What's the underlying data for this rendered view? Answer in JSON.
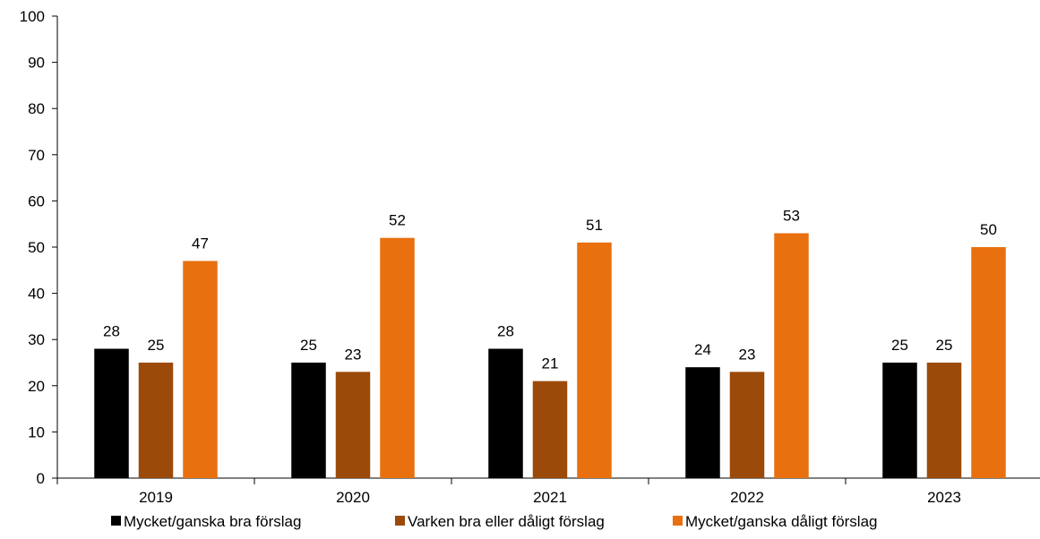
{
  "chart_data": {
    "type": "bar",
    "categories": [
      "2019",
      "2020",
      "2021",
      "2022",
      "2023"
    ],
    "series": [
      {
        "name": "Mycket/ganska bra förslag",
        "color": "#000000",
        "values": [
          28,
          25,
          28,
          24,
          25
        ]
      },
      {
        "name": "Varken bra eller dåligt förslag",
        "color": "#9C4A09",
        "values": [
          25,
          23,
          21,
          23,
          25
        ]
      },
      {
        "name": "Mycket/ganska dåligt förslag",
        "color": "#E8700E",
        "values": [
          47,
          52,
          51,
          53,
          50
        ]
      }
    ],
    "ylim": [
      0,
      100
    ],
    "yticks": [
      0,
      10,
      20,
      30,
      40,
      50,
      60,
      70,
      80,
      90,
      100
    ],
    "title": "",
    "xlabel": "",
    "ylabel": "",
    "grid": false,
    "legend_position": "bottom",
    "data_labels": true
  }
}
